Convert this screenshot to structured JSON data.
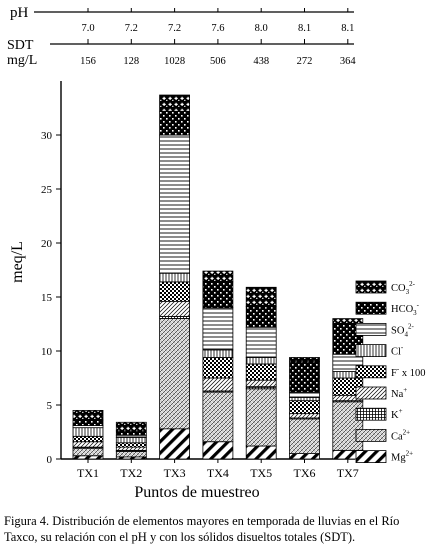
{
  "chart_data": {
    "type": "bar",
    "stacked": true,
    "categories": [
      "TX1",
      "TX2",
      "TX3",
      "TX4",
      "TX5",
      "TX6",
      "TX7"
    ],
    "ylabel": "meq/L",
    "xlabel": "Puntos de muestreo",
    "ylim": [
      0,
      35
    ],
    "yticks": [
      0,
      5,
      10,
      15,
      20,
      25,
      30
    ],
    "grid": false,
    "legend_position": "right",
    "header_table": {
      "ph_label": "pH",
      "ph_values": [
        "7.0",
        "7.2",
        "7.2",
        "7.6",
        "8.0",
        "8.1",
        "8.1"
      ],
      "sdt_label": "SDT",
      "sdt_unit": "mg/L",
      "sdt_values": [
        "156",
        "128",
        "1028",
        "506",
        "438",
        "272",
        "364"
      ]
    },
    "series": [
      {
        "name": "Mg2+",
        "base": "Mg",
        "sup": "2+",
        "pattern": "pat-mg",
        "values": [
          0.3,
          0.2,
          2.8,
          1.6,
          1.2,
          0.5,
          0.8
        ]
      },
      {
        "name": "Ca2+",
        "base": "Ca",
        "sup": "2+",
        "pattern": "pat-ca",
        "values": [
          0.7,
          0.5,
          10.2,
          4.6,
          5.3,
          3.2,
          4.5
        ]
      },
      {
        "name": "K+",
        "base": "K",
        "sup": "+",
        "pattern": "pat-k",
        "values": [
          0.1,
          0.1,
          0.2,
          0.1,
          0.2,
          0.1,
          0.1
        ]
      },
      {
        "name": "Na+",
        "base": "Na",
        "sup": "+",
        "pattern": "pat-na",
        "values": [
          0.5,
          0.3,
          1.4,
          1.2,
          0.6,
          0.4,
          0.5
        ]
      },
      {
        "name": "F- x 100",
        "base": "F",
        "sup": "-",
        "after": " x 100",
        "pattern": "pat-f",
        "values": [
          0.5,
          0.4,
          1.8,
          1.9,
          1.5,
          1.2,
          1.6
        ]
      },
      {
        "name": "Cl-",
        "base": "Cl",
        "sup": "-",
        "pattern": "pat-cl",
        "values": [
          0.8,
          0.5,
          0.8,
          0.7,
          0.6,
          0.3,
          0.6
        ]
      },
      {
        "name": "SO42-",
        "base": "SO",
        "sub": "4",
        "sup": "2-",
        "pattern": "pat-so",
        "values": [
          0.2,
          0.2,
          12.8,
          3.9,
          2.8,
          0.5,
          1.6
        ]
      },
      {
        "name": "HCO3-",
        "base": "HCO",
        "sub": "3",
        "sup": "-",
        "pattern": "pat-hco",
        "values": [
          0.5,
          0.4,
          2.2,
          2.4,
          1.9,
          2.8,
          2.8
        ]
      },
      {
        "name": "CO32-",
        "base": "CO",
        "sub": "3",
        "sup": "2-",
        "pattern": "pat-co",
        "values": [
          0.9,
          0.8,
          1.5,
          1.0,
          1.8,
          0.4,
          0.5
        ]
      }
    ]
  },
  "caption": "Figura 4. Distribución de elementos mayores en temporada de lluvias en el Río Taxco, su relación con el pH y con los sólidos disueltos totales (SDT)."
}
